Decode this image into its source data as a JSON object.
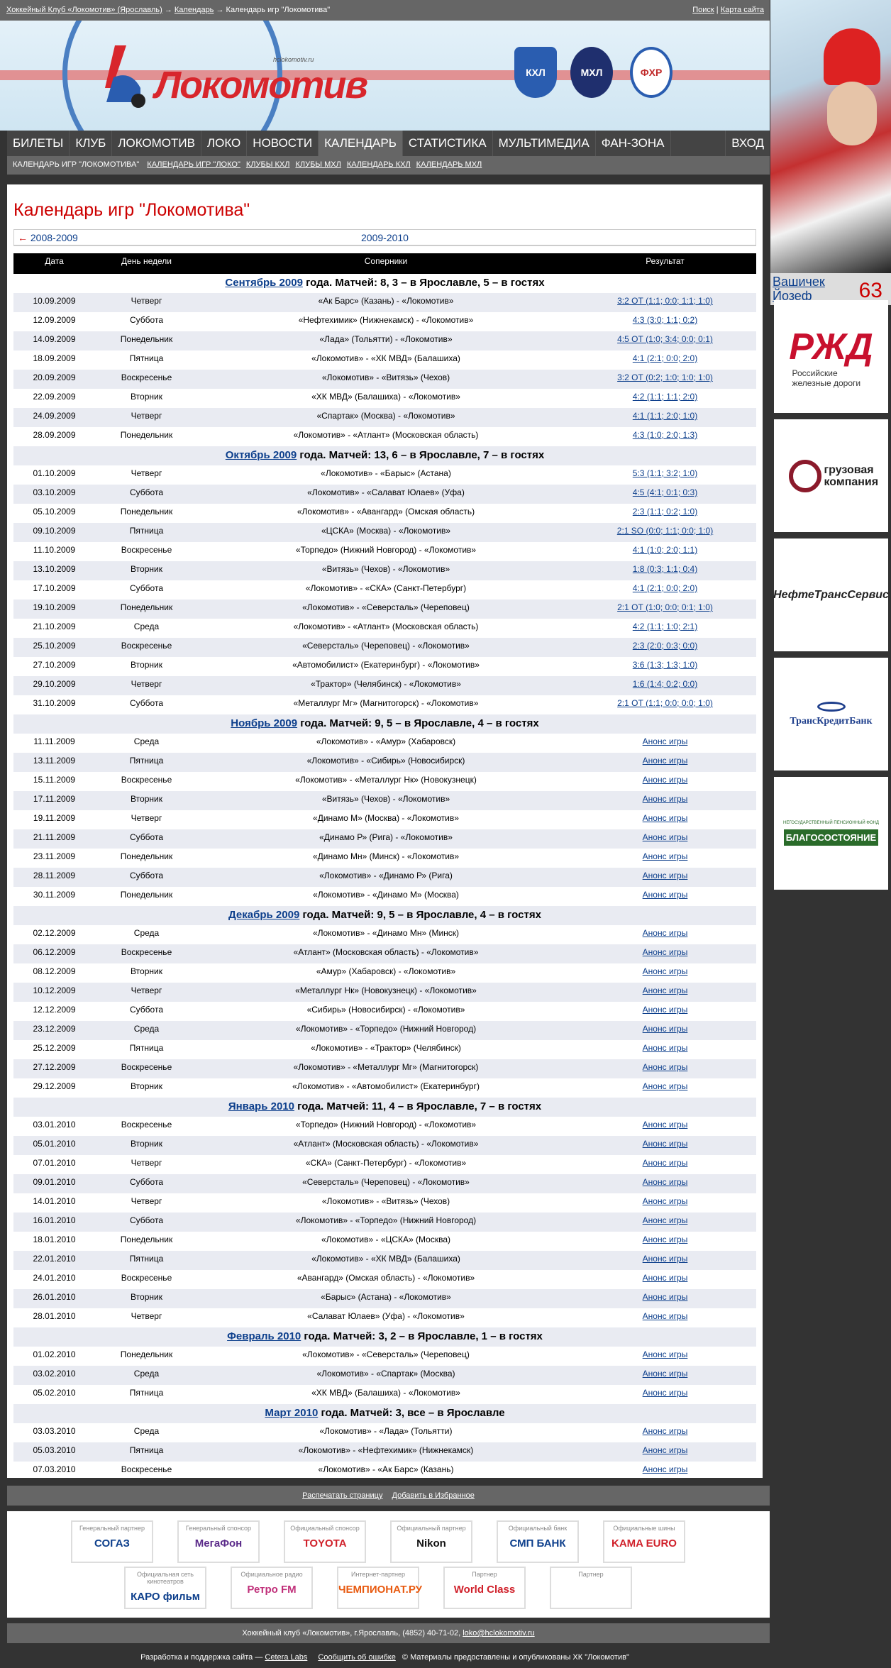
{
  "breadcrumb": {
    "items": [
      "Хоккейный Клуб «Локомотив» (Ярославль)",
      "Календарь"
    ],
    "sep": "→",
    "current": "Календарь игр \"Локомотива\""
  },
  "toplinks": [
    "Поиск",
    "Карта сайта"
  ],
  "logo": {
    "word": "Локомотив",
    "url": "hclokomotiv.ru"
  },
  "leagues": [
    {
      "name": "КХЛ",
      "color": "#2a5db0"
    },
    {
      "name": "МХЛ",
      "color": "#1f2f6e"
    },
    {
      "name": "ФХР",
      "color": "#c02a2a"
    }
  ],
  "nav": {
    "items": [
      "БИЛЕТЫ",
      "КЛУБ",
      "ЛОКОМОТИВ",
      "ЛОКО",
      "НОВОСТИ",
      "КАЛЕНДАРЬ",
      "СТАТИСТИКА",
      "МУЛЬТИМЕДИА",
      "ФАН-ЗОНА"
    ],
    "active": 5,
    "login": "ВХОД"
  },
  "subnav": {
    "current": "КАЛЕНДАРЬ ИГР \"ЛОКОМОТИВА\"",
    "links": [
      "КАЛЕНДАРЬ ИГР \"ЛОКО\"",
      "КЛУБЫ КХЛ",
      "КЛУБЫ МХЛ",
      "КАЛЕНДАРЬ КХЛ",
      "КАЛЕНДАРЬ МХЛ"
    ]
  },
  "player": {
    "first": "Вашичек",
    "last": "Йозеф",
    "number": "63"
  },
  "sidebar_sponsors": [
    "РЖД",
    "Российские железные дороги",
    "грузовая компания",
    "НефтеТрансСервис",
    "ТрансКредитБанк",
    "НЕГОСУДАРСТВЕННЫЙ ПЕНСИОННЫЙ ФОНД",
    "БЛАГОСОСТОЯНИЕ"
  ],
  "page_title": "Календарь игр \"Локомотива\"",
  "season": {
    "prev_arrow": "←",
    "prev": "2008-2009",
    "current": "2009-2010"
  },
  "table": {
    "headers": [
      "Дата",
      "День недели",
      "Соперники",
      "Результат"
    ],
    "months": [
      {
        "link": "Сентябрь 2009",
        "text": " года. Матчей: 8, 3 – в Ярославле, 5 – в гостях",
        "rows": [
          [
            "10.09.2009",
            "Четверг",
            "«Ак Барс» (Казань) - «Локомотив»",
            "3:2 ОТ (1:1; 0:0; 1:1; 1:0)"
          ],
          [
            "12.09.2009",
            "Суббота",
            "«Нефтехимик» (Нижнекамск) - «Локомотив»",
            "4:3 (3:0; 1:1; 0:2)"
          ],
          [
            "14.09.2009",
            "Понедельник",
            "«Лада» (Тольятти) - «Локомотив»",
            "4:5 ОТ (1:0; 3:4; 0:0; 0:1)"
          ],
          [
            "18.09.2009",
            "Пятница",
            "«Локомотив» - «ХК МВД» (Балашиха)",
            "4:1 (2:1; 0:0; 2:0)"
          ],
          [
            "20.09.2009",
            "Воскресенье",
            "«Локомотив» - «Витязь» (Чехов)",
            "3:2 ОТ (0:2; 1:0; 1:0; 1:0)"
          ],
          [
            "22.09.2009",
            "Вторник",
            "«ХК МВД» (Балашиха) - «Локомотив»",
            "4:2 (1:1; 1:1; 2:0)"
          ],
          [
            "24.09.2009",
            "Четверг",
            "«Спартак» (Москва) - «Локомотив»",
            "4:1 (1:1; 2:0; 1:0)"
          ],
          [
            "28.09.2009",
            "Понедельник",
            "«Локомотив» - «Атлант» (Московская область)",
            "4:3 (1:0; 2:0; 1:3)"
          ]
        ]
      },
      {
        "link": "Октябрь 2009",
        "text": " года. Матчей: 13, 6 – в Ярославле, 7 – в гостях",
        "rows": [
          [
            "01.10.2009",
            "Четверг",
            "«Локомотив» - «Барыс» (Астана)",
            "5:3 (1:1; 3:2; 1:0)"
          ],
          [
            "03.10.2009",
            "Суббота",
            "«Локомотив» - «Салават Юлаев» (Уфа)",
            "4:5 (4:1; 0:1; 0:3)"
          ],
          [
            "05.10.2009",
            "Понедельник",
            "«Локомотив» - «Авангард» (Омская область)",
            "2:3 (1:1; 0:2; 1:0)"
          ],
          [
            "09.10.2009",
            "Пятница",
            "«ЦСКА» (Москва) - «Локомотив»",
            "2:1 SO (0:0; 1:1; 0:0; 1:0)"
          ],
          [
            "11.10.2009",
            "Воскресенье",
            "«Торпедо» (Нижний Новгород) - «Локомотив»",
            "4:1 (1:0; 2:0; 1:1)"
          ],
          [
            "13.10.2009",
            "Вторник",
            "«Витязь» (Чехов) - «Локомотив»",
            "1:8 (0:3; 1:1; 0:4)"
          ],
          [
            "17.10.2009",
            "Суббота",
            "«Локомотив» - «СКА» (Санкт-Петербург)",
            "4:1 (2:1; 0:0; 2:0)"
          ],
          [
            "19.10.2009",
            "Понедельник",
            "«Локомотив» - «Северсталь» (Череповец)",
            "2:1 ОТ (1:0; 0:0; 0:1; 1:0)"
          ],
          [
            "21.10.2009",
            "Среда",
            "«Локомотив» - «Атлант» (Московская область)",
            "4:2 (1:1; 1:0; 2:1)"
          ],
          [
            "25.10.2009",
            "Воскресенье",
            "«Северсталь» (Череповец) - «Локомотив»",
            "2:3 (2:0; 0:3; 0:0)"
          ],
          [
            "27.10.2009",
            "Вторник",
            "«Автомобилист» (Екатеринбург) - «Локомотив»",
            "3:6 (1:3; 1:3; 1:0)"
          ],
          [
            "29.10.2009",
            "Четверг",
            "«Трактор» (Челябинск) - «Локомотив»",
            "1:6 (1:4; 0:2; 0:0)"
          ],
          [
            "31.10.2009",
            "Суббота",
            "«Металлург Мг» (Магнитогорск) - «Локомотив»",
            "2:1 ОТ (1:1; 0:0; 0:0; 1:0)"
          ]
        ]
      },
      {
        "link": "Ноябрь 2009",
        "text": " года. Матчей: 9, 5 – в Ярославле, 4 – в гостях",
        "rows": [
          [
            "11.11.2009",
            "Среда",
            "«Локомотив» - «Амур» (Хабаровск)",
            "Анонс игры"
          ],
          [
            "13.11.2009",
            "Пятница",
            "«Локомотив» - «Сибирь» (Новосибирск)",
            "Анонс игры"
          ],
          [
            "15.11.2009",
            "Воскресенье",
            "«Локомотив» - «Металлург Нк» (Новокузнецк)",
            "Анонс игры"
          ],
          [
            "17.11.2009",
            "Вторник",
            "«Витязь» (Чехов) - «Локомотив»",
            "Анонс игры"
          ],
          [
            "19.11.2009",
            "Четверг",
            "«Динамо М» (Москва) - «Локомотив»",
            "Анонс игры"
          ],
          [
            "21.11.2009",
            "Суббота",
            "«Динамо Р» (Рига) - «Локомотив»",
            "Анонс игры"
          ],
          [
            "23.11.2009",
            "Понедельник",
            "«Динамо Мн» (Минск) - «Локомотив»",
            "Анонс игры"
          ],
          [
            "28.11.2009",
            "Суббота",
            "«Локомотив» - «Динамо Р» (Рига)",
            "Анонс игры"
          ],
          [
            "30.11.2009",
            "Понедельник",
            "«Локомотив» - «Динамо М» (Москва)",
            "Анонс игры"
          ]
        ]
      },
      {
        "link": "Декабрь 2009",
        "text": " года. Матчей: 9, 5 – в Ярославле, 4 – в гостях",
        "rows": [
          [
            "02.12.2009",
            "Среда",
            "«Локомотив» - «Динамо Мн» (Минск)",
            "Анонс игры"
          ],
          [
            "06.12.2009",
            "Воскресенье",
            "«Атлант» (Московская область) - «Локомотив»",
            "Анонс игры"
          ],
          [
            "08.12.2009",
            "Вторник",
            "«Амур» (Хабаровск) - «Локомотив»",
            "Анонс игры"
          ],
          [
            "10.12.2009",
            "Четверг",
            "«Металлург Нк» (Новокузнецк) - «Локомотив»",
            "Анонс игры"
          ],
          [
            "12.12.2009",
            "Суббота",
            "«Сибирь» (Новосибирск) - «Локомотив»",
            "Анонс игры"
          ],
          [
            "23.12.2009",
            "Среда",
            "«Локомотив» - «Торпедо» (Нижний Новгород)",
            "Анонс игры"
          ],
          [
            "25.12.2009",
            "Пятница",
            "«Локомотив» - «Трактор» (Челябинск)",
            "Анонс игры"
          ],
          [
            "27.12.2009",
            "Воскресенье",
            "«Локомотив» - «Металлург Мг» (Магнитогорск)",
            "Анонс игры"
          ],
          [
            "29.12.2009",
            "Вторник",
            "«Локомотив» - «Автомобилист» (Екатеринбург)",
            "Анонс игры"
          ]
        ]
      },
      {
        "link": "Январь 2010",
        "text": " года. Матчей: 11, 4 – в Ярославле, 7 – в гостях",
        "rows": [
          [
            "03.01.2010",
            "Воскресенье",
            "«Торпедо» (Нижний Новгород) - «Локомотив»",
            "Анонс игры"
          ],
          [
            "05.01.2010",
            "Вторник",
            "«Атлант» (Московская область) - «Локомотив»",
            "Анонс игры"
          ],
          [
            "07.01.2010",
            "Четверг",
            "«СКА» (Санкт-Петербург) - «Локомотив»",
            "Анонс игры"
          ],
          [
            "09.01.2010",
            "Суббота",
            "«Северсталь» (Череповец) - «Локомотив»",
            "Анонс игры"
          ],
          [
            "14.01.2010",
            "Четверг",
            "«Локомотив» - «Витязь» (Чехов)",
            "Анонс игры"
          ],
          [
            "16.01.2010",
            "Суббота",
            "«Локомотив» - «Торпедо» (Нижний Новгород)",
            "Анонс игры"
          ],
          [
            "18.01.2010",
            "Понедельник",
            "«Локомотив» - «ЦСКА» (Москва)",
            "Анонс игры"
          ],
          [
            "22.01.2010",
            "Пятница",
            "«Локомотив» - «ХК МВД» (Балашиха)",
            "Анонс игры"
          ],
          [
            "24.01.2010",
            "Воскресенье",
            "«Авангард» (Омская область) - «Локомотив»",
            "Анонс игры"
          ],
          [
            "26.01.2010",
            "Вторник",
            "«Барыс» (Астана) - «Локомотив»",
            "Анонс игры"
          ],
          [
            "28.01.2010",
            "Четверг",
            "«Салават Юлаев» (Уфа) - «Локомотив»",
            "Анонс игры"
          ]
        ]
      },
      {
        "link": "Февраль 2010",
        "text": " года. Матчей: 3, 2 – в Ярославле, 1 – в гостях",
        "rows": [
          [
            "01.02.2010",
            "Понедельник",
            "«Локомотив» - «Северсталь» (Череповец)",
            "Анонс игры"
          ],
          [
            "03.02.2010",
            "Среда",
            "«Локомотив» - «Спартак» (Москва)",
            "Анонс игры"
          ],
          [
            "05.02.2010",
            "Пятница",
            "«ХК МВД» (Балашиха) - «Локомотив»",
            "Анонс игры"
          ]
        ]
      },
      {
        "link": "Март 2010",
        "text": " года. Матчей: 3, все – в Ярославле",
        "rows": [
          [
            "03.03.2010",
            "Среда",
            "«Локомотив» - «Лада» (Тольятти)",
            "Анонс игры"
          ],
          [
            "05.03.2010",
            "Пятница",
            "«Локомотив» - «Нефтехимик» (Нижнекамск)",
            "Анонс игры"
          ],
          [
            "07.03.2010",
            "Воскресенье",
            "«Локомотив» - «Ак Барс» (Казань)",
            "Анонс игры"
          ]
        ]
      }
    ]
  },
  "footer_links": [
    "Распечатать страницу",
    "Добавить в Избранное"
  ],
  "partners": [
    {
      "role": "Генеральный партнер",
      "name": "СОГАЗ",
      "color": "#0d3f8c"
    },
    {
      "role": "Генеральный спонсор",
      "name": "МегаФон",
      "color": "#5b2b8a"
    },
    {
      "role": "Официальный спонсор",
      "name": "TOYOTA",
      "color": "#d0202a"
    },
    {
      "role": "Официальный партнер",
      "name": "Nikon",
      "color": "#111"
    },
    {
      "role": "Официальный банк",
      "name": "СМП БАНК",
      "color": "#0d3f8c"
    },
    {
      "role": "Официальные шины",
      "name": "KAMA EURO",
      "color": "#d0202a"
    },
    {
      "role": "Официальная сеть кинотеатров",
      "name": "КАРО фильм",
      "color": "#0d3f8c"
    },
    {
      "role": "Официальное радио",
      "name": "Ретро FM",
      "color": "#c0307a"
    },
    {
      "role": "Интернет-партнер",
      "name": "ЧЕМПИОНАТ.РУ",
      "color": "#e85a10"
    },
    {
      "role": "Партнер",
      "name": "World Class",
      "color": "#d0202a"
    },
    {
      "role": "Партнер",
      "name": "",
      "color": "#555"
    }
  ],
  "contact": {
    "text": "Хоккейный клуб «Локомотив», г.Ярославль, (4852) 40-71-02, ",
    "email": "loko@hclokomotiv.ru"
  },
  "bottom": {
    "dev": "Разработка и поддержка сайта — ",
    "dev_link": "Cetera Labs",
    "report": "Сообщить об ошибке",
    "copyright": "© Материалы предоставлены и опубликованы ХК \"Локомотив\""
  }
}
